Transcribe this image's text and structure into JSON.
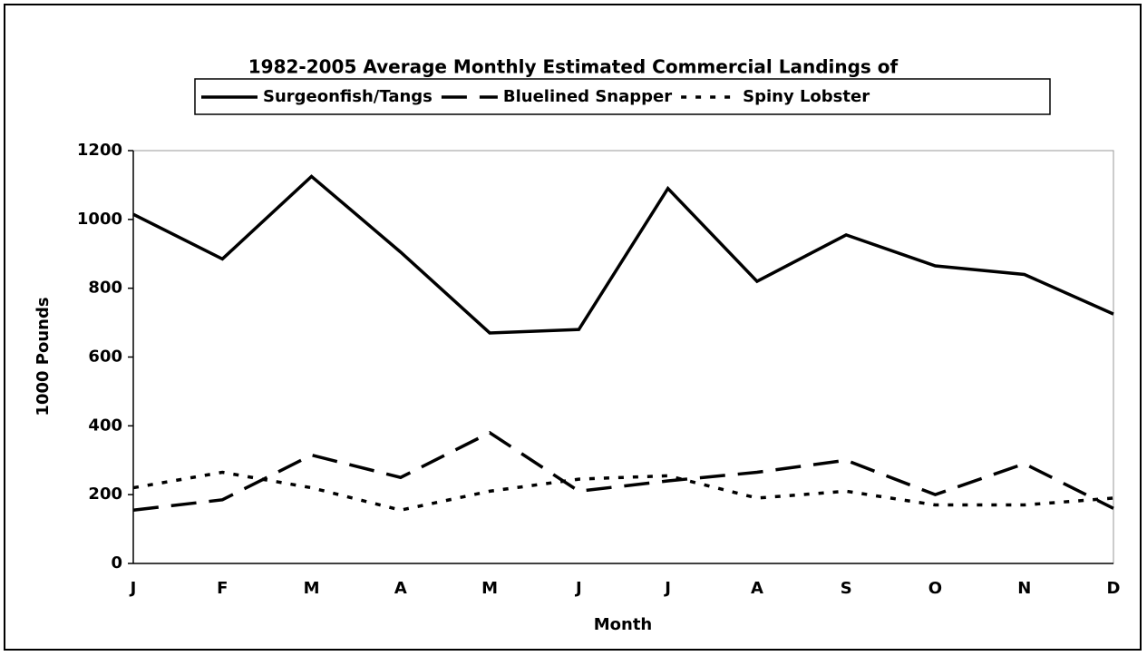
{
  "chart_data": {
    "type": "line",
    "title": "1982-2005 Average Monthly Estimated Commercial Landings of",
    "x_label": "Month",
    "y_label": "1000 Pounds",
    "categories": [
      "J",
      "F",
      "M",
      "A",
      "M",
      "J",
      "J",
      "A",
      "S",
      "O",
      "N",
      "D"
    ],
    "series": [
      {
        "name": "Surgeonfish/Tangs",
        "color": "#000000",
        "style": "solid",
        "values": [
          1015,
          885,
          1125,
          905,
          670,
          680,
          1090,
          820,
          955,
          865,
          840,
          725
        ]
      },
      {
        "name": "Bluelined Snapper",
        "color": "#000000",
        "style": "dashed",
        "values": [
          155,
          185,
          315,
          250,
          380,
          210,
          240,
          265,
          300,
          200,
          290,
          160
        ]
      },
      {
        "name": "Spiny Lobster",
        "color": "#000000",
        "style": "dotted",
        "values": [
          220,
          265,
          220,
          155,
          210,
          245,
          255,
          190,
          210,
          170,
          170,
          190
        ]
      }
    ],
    "ylim": [
      0,
      1200
    ],
    "yticks": [
      0,
      200,
      400,
      600,
      800,
      1000,
      1200
    ],
    "grid": false,
    "legend": "top"
  }
}
